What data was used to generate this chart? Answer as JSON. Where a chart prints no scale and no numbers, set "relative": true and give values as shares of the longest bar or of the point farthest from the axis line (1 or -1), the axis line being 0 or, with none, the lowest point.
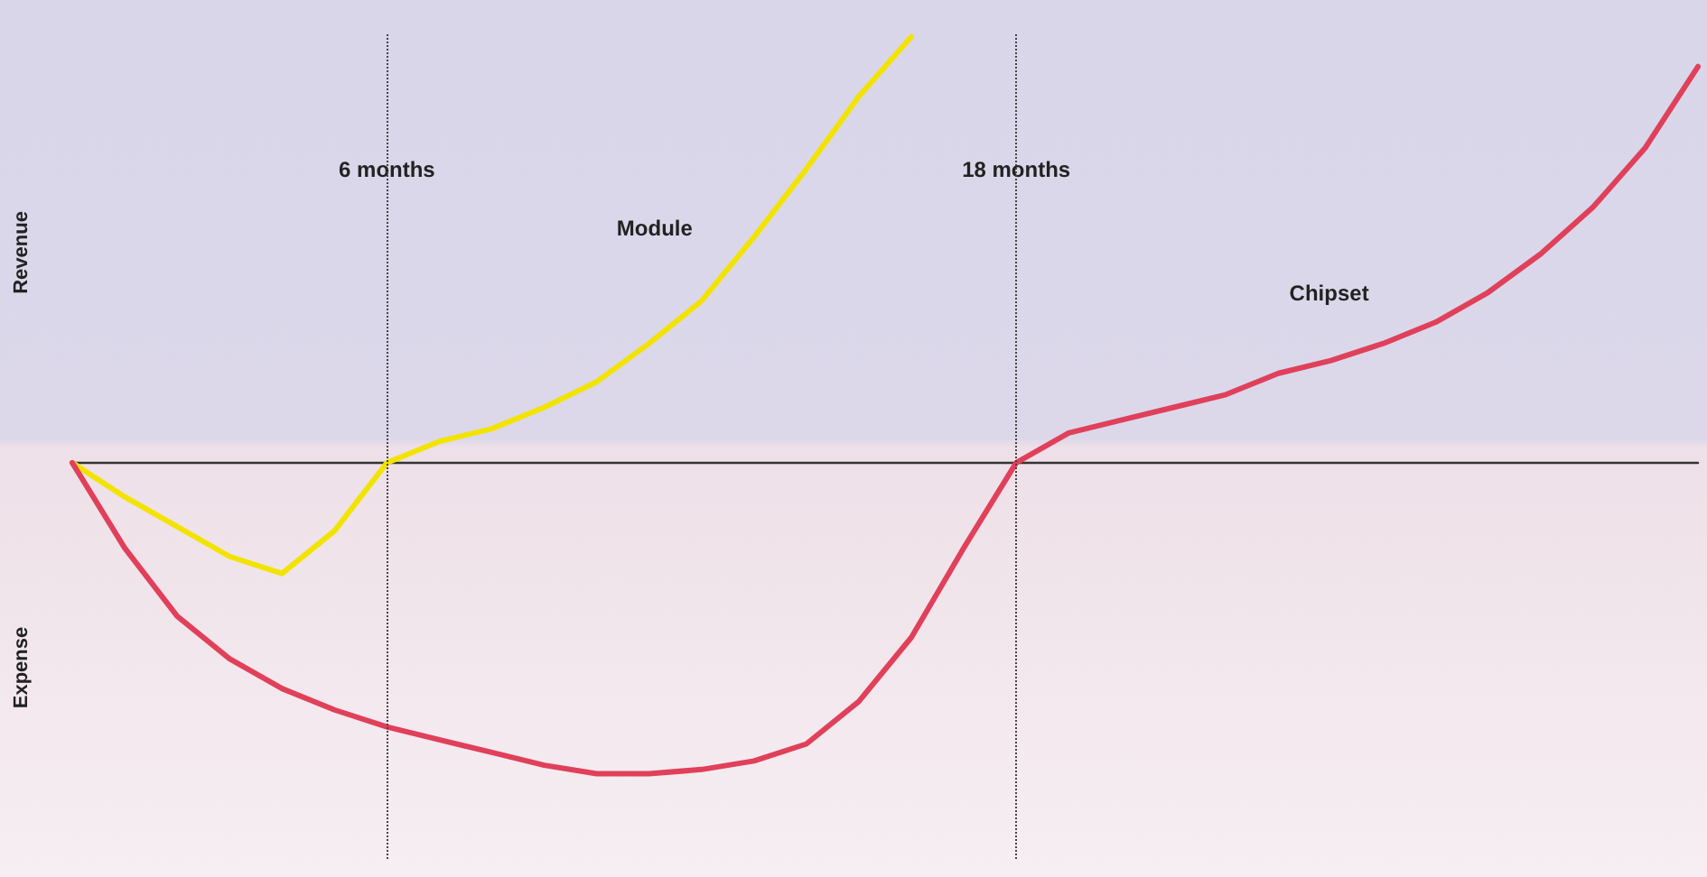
{
  "chart_data": {
    "type": "line",
    "relative": true,
    "marker": "none",
    "line_style": "solid",
    "annotations": [
      "Revenue",
      "Expense"
    ],
    "categories": [
      null,
      null,
      null,
      null,
      null,
      null,
      "6 months",
      null,
      null,
      null,
      null,
      null,
      null,
      null,
      null,
      null,
      null,
      null,
      "18 months",
      null,
      null,
      null,
      null,
      null,
      null,
      null,
      null,
      null,
      null,
      null,
      null,
      null
    ],
    "ref_lines": [
      {
        "axis": "x",
        "value": "6 months"
      },
      {
        "axis": "x",
        "value": "18 months"
      }
    ],
    "series": [
      {
        "name": "Module",
        "color": "#f2e400",
        "values": [
          0,
          -0.08,
          -0.15,
          -0.22,
          -0.26,
          -0.16,
          0.0,
          0.05,
          0.08,
          0.13,
          0.19,
          0.28,
          0.38,
          0.53,
          0.69,
          0.86,
          1.0,
          null,
          null,
          null,
          null,
          null,
          null,
          null,
          null,
          null,
          null,
          null,
          null,
          null,
          null,
          null
        ]
      },
      {
        "name": "Chipset",
        "color": "#e0405a",
        "values": [
          0,
          -0.2,
          -0.36,
          -0.46,
          -0.53,
          -0.58,
          -0.62,
          -0.65,
          -0.68,
          -0.71,
          -0.73,
          -0.73,
          -0.72,
          -0.7,
          -0.66,
          -0.56,
          -0.41,
          -0.2,
          0.0,
          0.07,
          0.1,
          0.13,
          0.16,
          0.21,
          0.24,
          0.28,
          0.33,
          0.4,
          0.49,
          0.6,
          0.74,
          0.93
        ]
      }
    ]
  }
}
